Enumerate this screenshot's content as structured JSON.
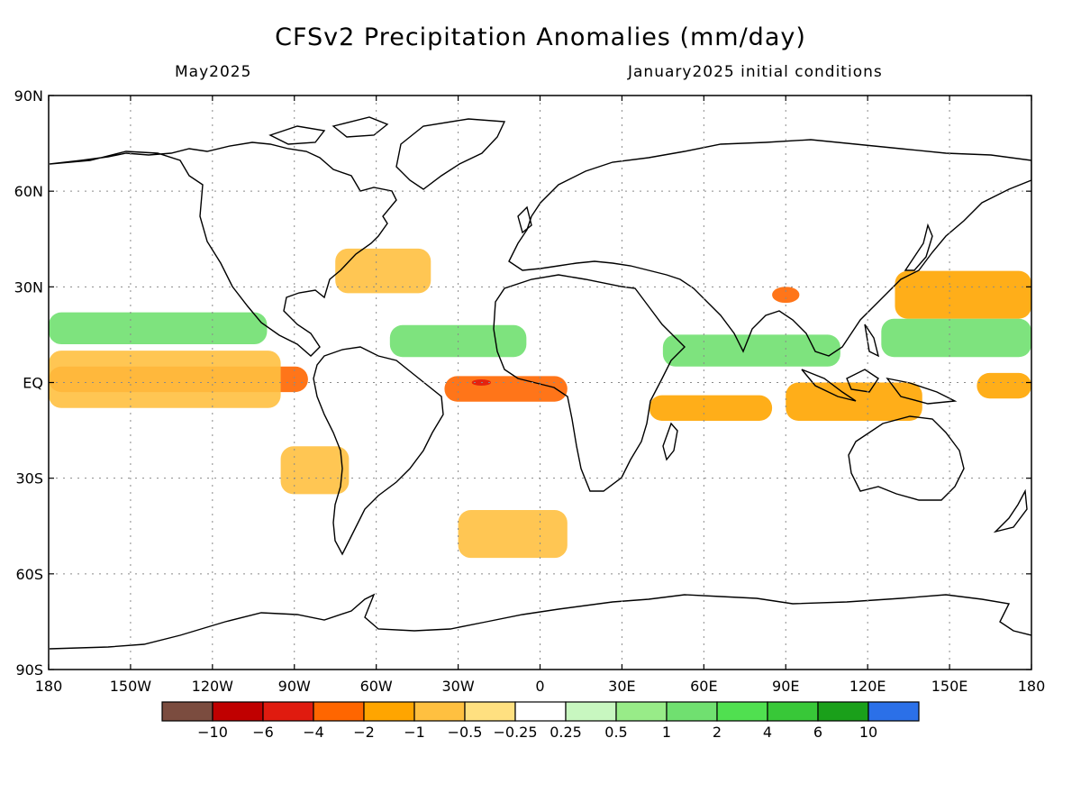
{
  "title": "CFSv2 Precipitation Anomalies (mm/day)",
  "subtitle_left": "May2025",
  "subtitle_right": "January2025 initial conditions",
  "lat_ticks": [
    "90N",
    "60N",
    "30N",
    "EQ",
    "30S",
    "60S",
    "90S"
  ],
  "lon_ticks": [
    "180",
    "150W",
    "120W",
    "90W",
    "60W",
    "30W",
    "0",
    "30E",
    "60E",
    "90E",
    "120E",
    "150E",
    "180"
  ],
  "colorbar": {
    "colors": [
      "#7b4c3f",
      "#c00000",
      "#e01b0f",
      "#ff6600",
      "#ffa500",
      "#ffc040",
      "#ffe080",
      "#ffffff",
      "#c8f7c0",
      "#98ec88",
      "#70e070",
      "#50e050",
      "#38c838",
      "#1aa01a",
      "#2b70e8"
    ],
    "labels": [
      "-10",
      "-6",
      "-4",
      "-2",
      "-1",
      "-0.5",
      "-0.25",
      "0.25",
      "0.5",
      "1",
      "2",
      "4",
      "6",
      "10"
    ]
  },
  "chart_data": {
    "type": "heatmap",
    "title": "CFSv2 Precipitation Anomalies (mm/day)",
    "subtitle": [
      "May2025",
      "January2025 initial conditions"
    ],
    "units": "mm/day",
    "x_range": [
      -180,
      180
    ],
    "y_range": [
      -90,
      90
    ],
    "grid": true,
    "levels": [
      -10,
      -6,
      -4,
      -2,
      -1,
      -0.5,
      -0.25,
      0.25,
      0.5,
      1,
      2,
      4,
      6,
      10
    ],
    "anomaly_regions": [
      {
        "lon": [
          -180,
          -85
        ],
        "lat": [
          -3,
          5
        ],
        "value": -3
      },
      {
        "lon": [
          -180,
          -95
        ],
        "lat": [
          -8,
          10
        ],
        "value": -1
      },
      {
        "lon": [
          -180,
          -100
        ],
        "lat": [
          12,
          22
        ],
        "value": 1.5
      },
      {
        "lon": [
          -55,
          -5
        ],
        "lat": [
          8,
          18
        ],
        "value": 1
      },
      {
        "lon": [
          -35,
          10
        ],
        "lat": [
          -6,
          2
        ],
        "value": -3
      },
      {
        "lon": [
          -25,
          -18
        ],
        "lat": [
          -1,
          1
        ],
        "value": -5
      },
      {
        "lon": [
          -75,
          -40
        ],
        "lat": [
          28,
          42
        ],
        "value": -1
      },
      {
        "lon": [
          -95,
          -70
        ],
        "lat": [
          -35,
          -20
        ],
        "value": -0.6
      },
      {
        "lon": [
          -30,
          10
        ],
        "lat": [
          -55,
          -40
        ],
        "value": -0.6
      },
      {
        "lon": [
          40,
          85
        ],
        "lat": [
          -12,
          -4
        ],
        "value": -1.5
      },
      {
        "lon": [
          45,
          110
        ],
        "lat": [
          5,
          15
        ],
        "value": 1.5
      },
      {
        "lon": [
          90,
          140
        ],
        "lat": [
          -12,
          0
        ],
        "value": -1.5
      },
      {
        "lon": [
          130,
          180
        ],
        "lat": [
          20,
          35
        ],
        "value": -1.5
      },
      {
        "lon": [
          125,
          180
        ],
        "lat": [
          8,
          20
        ],
        "value": 1.5
      },
      {
        "lon": [
          160,
          180
        ],
        "lat": [
          -5,
          3
        ],
        "value": -2
      },
      {
        "lon": [
          85,
          95
        ],
        "lat": [
          25,
          30
        ],
        "value": -3
      }
    ]
  }
}
